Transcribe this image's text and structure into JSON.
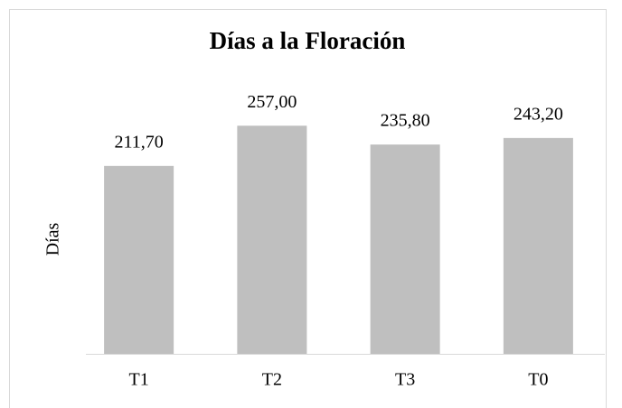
{
  "chart_data": {
    "type": "bar",
    "title": "Días a la Floración",
    "y_label": "Días",
    "categories": [
      "T1",
      "T2",
      "T3",
      "T0"
    ],
    "values": [
      211.7,
      257,
      235.8,
      243.2
    ],
    "value_labels": [
      "211,70",
      "257,00",
      "235,80",
      "243,20"
    ],
    "color": "#bfbfbf",
    "ylim": [
      0,
      300
    ]
  }
}
